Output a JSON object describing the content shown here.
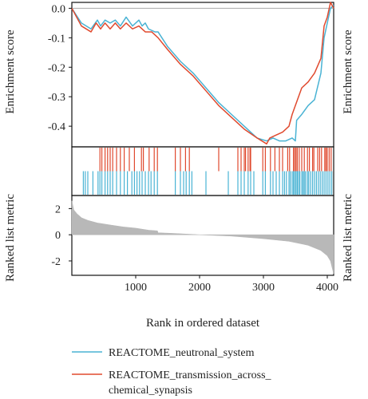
{
  "chart_data": {
    "type": "line",
    "xlabel": "Rank in ordered dataset",
    "xlim": [
      0,
      4100
    ],
    "x_ticks": [
      "1000",
      "2000",
      "3000",
      "4000"
    ],
    "panels": {
      "enrichment": {
        "ylabel_left": "Enrichment score",
        "ylabel_right": "Enrichment score",
        "ylim": [
          -0.47,
          0.02
        ],
        "y_ticks": [
          "0.0",
          "-0.1",
          "-0.2",
          "-0.3",
          "-0.4"
        ],
        "baseline": 0.0
      },
      "hits": {},
      "ranked": {
        "ylabel_left": "Ranked list metric",
        "ylabel_right": "Ranked list metric",
        "ylim": [
          -3.1,
          3.0
        ],
        "y_ticks": [
          "2",
          "0",
          "-2"
        ]
      }
    },
    "series": [
      {
        "name": "REACTOME_neutronal_system",
        "color": "#4ab3d4",
        "x": [
          0,
          150,
          300,
          400,
          450,
          520,
          600,
          680,
          760,
          850,
          950,
          1050,
          1100,
          1150,
          1200,
          1300,
          1350,
          1500,
          1700,
          1900,
          2100,
          2300,
          2500,
          2700,
          2900,
          3050,
          3150,
          3250,
          3350,
          3450,
          3500,
          3520,
          3600,
          3700,
          3800,
          3900,
          3950,
          4000,
          4050,
          4100
        ],
        "values": [
          0.0,
          -0.05,
          -0.07,
          -0.04,
          -0.06,
          -0.04,
          -0.05,
          -0.04,
          -0.06,
          -0.03,
          -0.06,
          -0.04,
          -0.06,
          -0.05,
          -0.07,
          -0.08,
          -0.08,
          -0.13,
          -0.18,
          -0.22,
          -0.27,
          -0.32,
          -0.36,
          -0.4,
          -0.44,
          -0.45,
          -0.44,
          -0.45,
          -0.45,
          -0.44,
          -0.45,
          -0.38,
          -0.36,
          -0.33,
          -0.31,
          -0.22,
          -0.1,
          -0.05,
          0.0,
          0.01
        ]
      },
      {
        "name": "REACTOME_transmission_across_chemical_synapsis",
        "name_lines": [
          "REACTOME_transmission_across_",
          "chemical_synapsis"
        ],
        "color": "#e04a2f",
        "x": [
          0,
          150,
          300,
          380,
          450,
          520,
          600,
          680,
          760,
          850,
          950,
          1050,
          1150,
          1250,
          1350,
          1500,
          1700,
          1900,
          2100,
          2300,
          2500,
          2700,
          2900,
          3050,
          3100,
          3200,
          3300,
          3400,
          3450,
          3500,
          3600,
          3700,
          3800,
          3900,
          3950,
          4000,
          4050,
          4100
        ],
        "values": [
          0.0,
          -0.06,
          -0.08,
          -0.05,
          -0.07,
          -0.05,
          -0.07,
          -0.05,
          -0.07,
          -0.05,
          -0.07,
          -0.06,
          -0.08,
          -0.08,
          -0.1,
          -0.14,
          -0.19,
          -0.23,
          -0.28,
          -0.33,
          -0.37,
          -0.41,
          -0.44,
          -0.46,
          -0.44,
          -0.43,
          -0.42,
          -0.4,
          -0.36,
          -0.33,
          -0.27,
          -0.25,
          -0.22,
          -0.17,
          -0.06,
          -0.03,
          0.02,
          0.0
        ]
      }
    ],
    "hits": {
      "transmission": [
        440,
        470,
        520,
        560,
        600,
        640,
        700,
        760,
        820,
        900,
        980,
        1090,
        1120,
        1210,
        1290,
        1340,
        1620,
        1700,
        1780,
        1840,
        2300,
        2600,
        2650,
        2700,
        2720,
        2760,
        2790,
        2800,
        2990,
        3030,
        3110,
        3180,
        3250,
        3300,
        3380,
        3410,
        3470,
        3490,
        3510,
        3530,
        3560,
        3600,
        3640,
        3690,
        3720,
        3770,
        3790,
        3850,
        3880,
        3910,
        3960,
        3980,
        4000,
        4030,
        4060
      ],
      "neutronal": [
        180,
        210,
        250,
        330,
        410,
        440,
        470,
        520,
        560,
        600,
        640,
        700,
        760,
        820,
        870,
        940,
        980,
        1020,
        1060,
        1100,
        1150,
        1200,
        1240,
        1290,
        1340,
        1620,
        1700,
        1750,
        1790,
        1840,
        1880,
        2100,
        2450,
        2600,
        2650,
        2700,
        2760,
        2800,
        2850,
        2990,
        3030,
        3110,
        3150,
        3200,
        3250,
        3300,
        3330,
        3360,
        3400,
        3420,
        3450,
        3470,
        3490,
        3510,
        3530,
        3550,
        3570,
        3600,
        3620,
        3640,
        3660,
        3690,
        3710,
        3740,
        3770,
        3800,
        3830,
        3860,
        3890,
        3920,
        3950,
        3980,
        4010,
        4040,
        4070
      ]
    },
    "ranked_metric": {
      "color": "#b8b8b8",
      "x": [
        0,
        30,
        80,
        150,
        250,
        400,
        600,
        800,
        1000,
        1200,
        1340,
        1350,
        1600,
        2000,
        2500,
        3000,
        3400,
        3700,
        3900,
        4000,
        4050,
        4080,
        4100
      ],
      "values": [
        2.6,
        1.9,
        1.6,
        1.3,
        1.1,
        0.9,
        0.75,
        0.6,
        0.5,
        0.35,
        0.3,
        0.15,
        0.1,
        0.0,
        -0.1,
        -0.3,
        -0.5,
        -0.8,
        -1.2,
        -1.6,
        -2.0,
        -2.6,
        -3.0
      ]
    }
  }
}
